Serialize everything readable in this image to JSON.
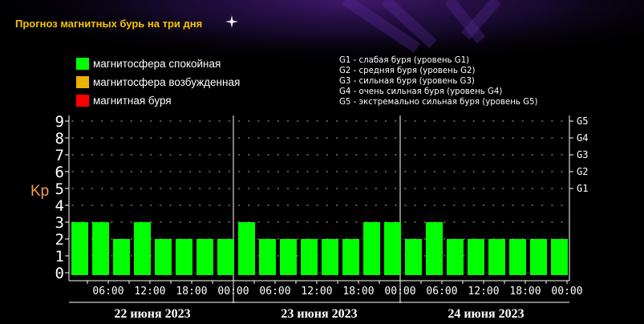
{
  "page_title": "Прогноз магнитных бурь на три дня",
  "legend": [
    {
      "label": "магнитосфера спокойная",
      "color": "#00ff00"
    },
    {
      "label": "магнитосфера возбужденная",
      "color": "#e8b400"
    },
    {
      "label": "магнитная буря",
      "color": "#ff0000"
    }
  ],
  "storm_levels": [
    "G1 - слабая буря (уровень G1)",
    "G2 - средняя буря (уровень G2)",
    "G3 - сильная буря (уровень G3)",
    "G4 - очень сильная буря (уровень G4)",
    "G5 - экстремально сильная буря (уровень G5)"
  ],
  "colors": {
    "title": "#f5c400",
    "bar": "#00ff00",
    "kp_label": "#f0a050",
    "axis": "#ffffff"
  },
  "chart_data": {
    "type": "bar",
    "ylabel": "Kp",
    "ylim": [
      0,
      9
    ],
    "y_ticks": [
      0,
      1,
      2,
      3,
      4,
      5,
      6,
      7,
      8,
      9
    ],
    "right_ticks": [
      {
        "label": "G1",
        "value": 5
      },
      {
        "label": "G2",
        "value": 6
      },
      {
        "label": "G3",
        "value": 7
      },
      {
        "label": "G4",
        "value": 8
      },
      {
        "label": "G5",
        "value": 9
      }
    ],
    "x_tick_labels": [
      "06:00",
      "12:00",
      "18:00",
      "00:00",
      "06:00",
      "12:00",
      "18:00",
      "00:00",
      "06:00",
      "12:00",
      "18:00",
      "00:00"
    ],
    "days": [
      "22 июня 2023",
      "23 июня 2023",
      "24 июня 2023"
    ],
    "series": [
      {
        "values": [
          3,
          3,
          2,
          3,
          2,
          2,
          2,
          2,
          3,
          2,
          2,
          2,
          2,
          2,
          3,
          3,
          2,
          3,
          2,
          2,
          2,
          2,
          2,
          2
        ]
      }
    ],
    "grid": true
  }
}
